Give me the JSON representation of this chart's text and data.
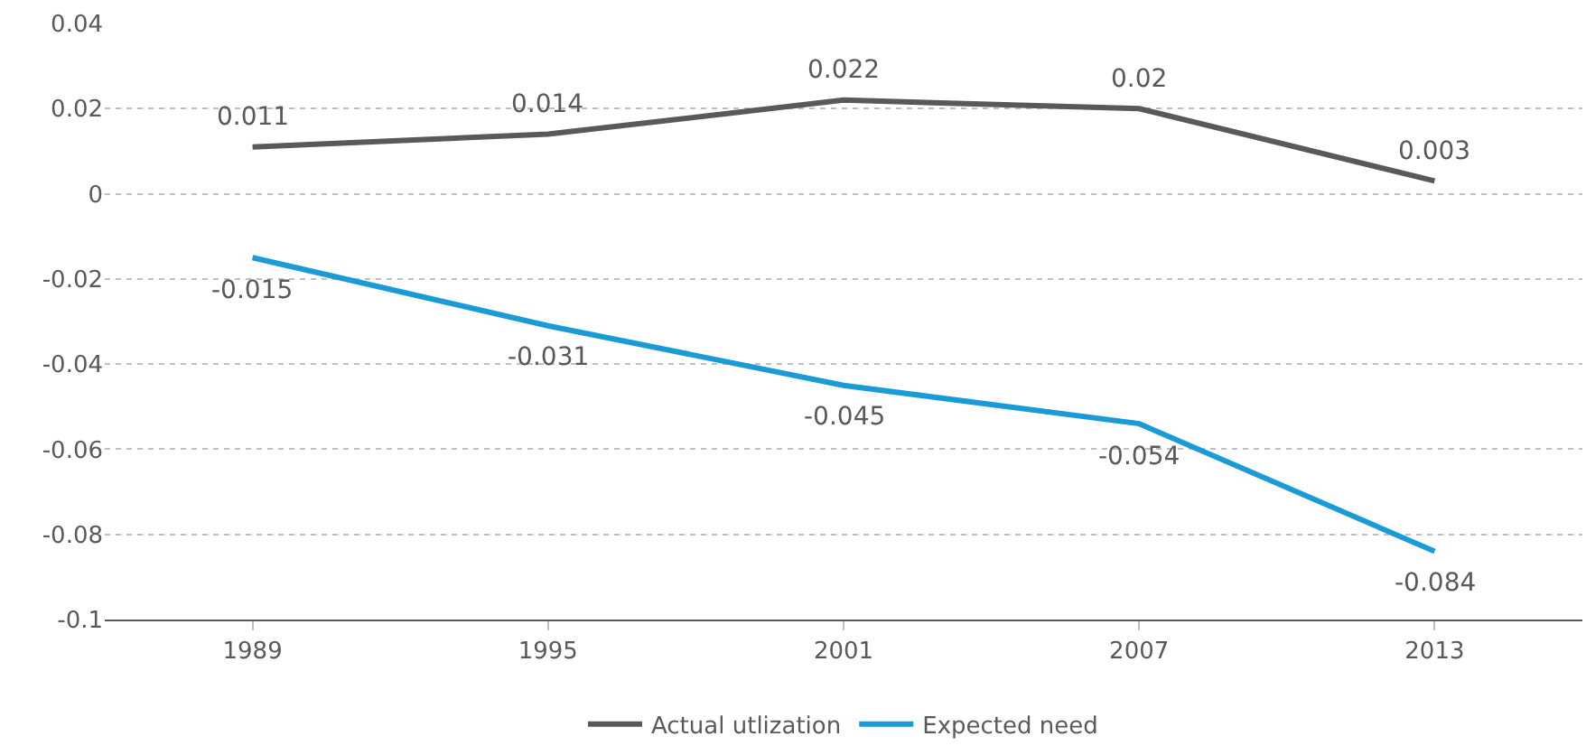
{
  "chart_data": {
    "type": "line",
    "categories": [
      "1989",
      "1995",
      "2001",
      "2007",
      "2013"
    ],
    "series": [
      {
        "name": "Actual utlization",
        "color": "#595959",
        "values": [
          0.011,
          0.014,
          0.022,
          0.02,
          0.003
        ]
      },
      {
        "name": "Expected need",
        "color": "#1a9bd7",
        "values": [
          -0.015,
          -0.031,
          -0.045,
          -0.054,
          -0.084
        ]
      }
    ],
    "ylim": [
      -0.1,
      0.04
    ],
    "yticks": [
      {
        "value": -0.1,
        "label": "-0.1"
      },
      {
        "value": -0.08,
        "label": "-0.08"
      },
      {
        "value": -0.06,
        "label": "-0.06"
      },
      {
        "value": -0.04,
        "label": "-0.04"
      },
      {
        "value": -0.02,
        "label": "-0.02"
      },
      0,
      {
        "value": 0.02,
        "label": "0.02"
      },
      {
        "value": 0.04,
        "label": "0.04"
      }
    ],
    "grid": "y",
    "legend": "bottom",
    "marker": "none",
    "line_style": "solid",
    "data_labels": true
  }
}
